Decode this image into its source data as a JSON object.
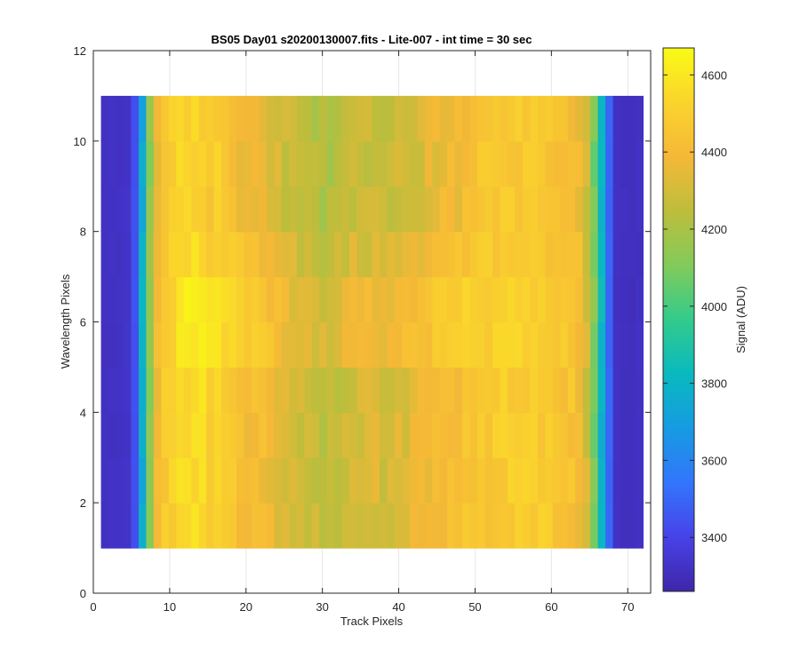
{
  "chart_data": {
    "type": "heatmap",
    "title": "BS05 Day01  s20200130007.fits - Lite-007 - int time = 30 sec",
    "xlabel": "Track Pixels",
    "ylabel": "Wavelength Pixels",
    "colorbar_label": "Signal (ADU)",
    "colormap": "parula",
    "xlim": [
      0,
      73
    ],
    "ylim": [
      0,
      12
    ],
    "clim": [
      3260,
      4670
    ],
    "x_ticks": [
      0,
      10,
      20,
      30,
      40,
      50,
      60,
      70
    ],
    "y_ticks": [
      0,
      2,
      4,
      6,
      8,
      10,
      12
    ],
    "colorbar_ticks": [
      3400,
      3600,
      3800,
      4000,
      4200,
      4400,
      4600
    ],
    "grid": true,
    "x": [
      1,
      72
    ],
    "y": [
      1,
      11
    ],
    "rows": 10,
    "columns": 72,
    "column_profile": [
      3320,
      3320,
      3320,
      3330,
      3440,
      3750,
      4150,
      4400,
      4480,
      4500,
      4550,
      4560,
      4560,
      4560,
      4510,
      4530,
      4480,
      4460,
      4430,
      4410,
      4410,
      4400,
      4370,
      4350,
      4310,
      4300,
      4290,
      4280,
      4270,
      4240,
      4250,
      4270,
      4290,
      4310,
      4320,
      4310,
      4320,
      4300,
      4300,
      4320,
      4330,
      4350,
      4360,
      4380,
      4400,
      4420,
      4430,
      4420,
      4450,
      4470,
      4470,
      4470,
      4480,
      4490,
      4490,
      4490,
      4490,
      4480,
      4480,
      4470,
      4460,
      4450,
      4440,
      4400,
      4300,
      4100,
      3800,
      3500,
      3320,
      3310,
      3310,
      3320
    ]
  }
}
